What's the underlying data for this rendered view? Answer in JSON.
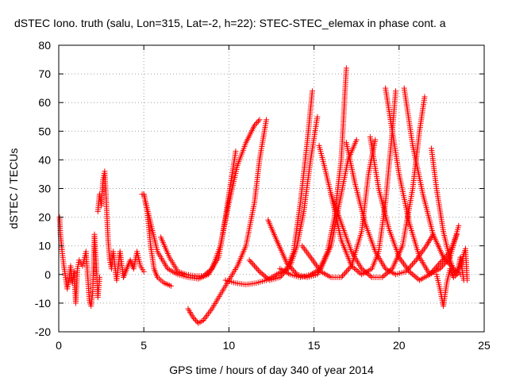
{
  "chart_data": {
    "type": "scatter",
    "title": "dSTEC Iono. truth (salu, Lon=315, Lat=-2, h=22): STEC-STEC_elemax in phase cont. a",
    "xlabel": "GPS time / hours of day 340 of year 2014",
    "ylabel": "dSTEC  / TECUs",
    "xlim": [
      0,
      25
    ],
    "ylim": [
      -20,
      80
    ],
    "xticks": [
      "0",
      "5",
      "10",
      "15",
      "20",
      "25"
    ],
    "yticks": [
      "-20",
      "-10",
      "0",
      "10",
      "20",
      "30",
      "40",
      "50",
      "60",
      "70",
      "80"
    ],
    "grid": true,
    "marker": "+",
    "color": "#ff0000",
    "series": [
      {
        "values": [
          [
            0.05,
            20
          ],
          [
            0.1,
            14
          ],
          [
            0.2,
            8
          ],
          [
            0.3,
            3
          ],
          [
            0.4,
            -1
          ],
          [
            0.5,
            -5
          ],
          [
            0.6,
            -2
          ],
          [
            0.7,
            3
          ],
          [
            0.8,
            -3
          ],
          [
            0.9,
            1
          ],
          [
            1.0,
            -10
          ],
          [
            1.1,
            2
          ],
          [
            1.2,
            5
          ],
          [
            1.4,
            3
          ],
          [
            1.6,
            8
          ],
          [
            1.8,
            -9
          ],
          [
            1.9,
            -11
          ],
          [
            2.0,
            -6
          ],
          [
            2.1,
            14
          ],
          [
            2.2,
            4
          ],
          [
            2.3,
            -8
          ],
          [
            2.4,
            -1
          ]
        ]
      },
      {
        "values": [
          [
            2.3,
            22
          ],
          [
            2.4,
            28
          ],
          [
            2.5,
            24
          ],
          [
            2.6,
            33
          ],
          [
            2.7,
            36
          ],
          [
            2.8,
            25
          ],
          [
            2.9,
            12
          ],
          [
            3.0,
            5
          ],
          [
            3.1,
            2
          ],
          [
            3.2,
            8
          ],
          [
            3.4,
            -2
          ],
          [
            3.6,
            8
          ],
          [
            3.8,
            -1
          ],
          [
            4.0,
            2
          ],
          [
            4.2,
            5
          ],
          [
            4.4,
            2
          ],
          [
            4.6,
            8
          ],
          [
            4.8,
            3
          ],
          [
            5.0,
            1
          ]
        ]
      },
      {
        "values": [
          [
            4.9,
            28
          ],
          [
            5.0,
            28
          ],
          [
            5.2,
            22
          ],
          [
            5.4,
            10
          ],
          [
            5.6,
            2
          ],
          [
            5.8,
            -1
          ],
          [
            6.0,
            -2
          ],
          [
            6.2,
            -3
          ],
          [
            6.4,
            -3.5
          ],
          [
            6.6,
            -4
          ]
        ]
      },
      {
        "values": [
          [
            5.0,
            28
          ],
          [
            5.4,
            18
          ],
          [
            5.8,
            8
          ],
          [
            6.4,
            2
          ],
          [
            7.0,
            0
          ],
          [
            7.6,
            -1
          ],
          [
            8.2,
            -1.5
          ],
          [
            8.8,
            0
          ],
          [
            9.4,
            6
          ],
          [
            9.8,
            20
          ],
          [
            10.0,
            28
          ],
          [
            10.4,
            43
          ]
        ]
      },
      {
        "values": [
          [
            6.0,
            13
          ],
          [
            6.5,
            6
          ],
          [
            7.0,
            1
          ],
          [
            7.5,
            0
          ],
          [
            8.0,
            -0.5
          ],
          [
            8.5,
            -0.5
          ],
          [
            9.0,
            2
          ],
          [
            9.5,
            10
          ],
          [
            10.0,
            25
          ],
          [
            10.5,
            38
          ],
          [
            11.0,
            46
          ],
          [
            11.5,
            52
          ],
          [
            11.8,
            54
          ]
        ]
      },
      {
        "values": [
          [
            7.6,
            -12
          ],
          [
            7.9,
            -15
          ],
          [
            8.2,
            -17
          ],
          [
            8.5,
            -16
          ],
          [
            9.0,
            -12
          ],
          [
            9.5,
            -7
          ],
          [
            10.0,
            -2
          ],
          [
            10.5,
            3
          ],
          [
            11.0,
            10
          ],
          [
            11.5,
            25
          ],
          [
            11.8,
            40
          ],
          [
            12.2,
            54
          ]
        ]
      },
      {
        "values": [
          [
            9.8,
            -2
          ],
          [
            10.4,
            -3
          ],
          [
            11.0,
            -3.5
          ],
          [
            11.6,
            -3
          ],
          [
            12.2,
            -2
          ],
          [
            12.8,
            0
          ],
          [
            13.4,
            2
          ],
          [
            13.8,
            8
          ],
          [
            14.2,
            25
          ],
          [
            14.6,
            46
          ],
          [
            14.9,
            64
          ]
        ]
      },
      {
        "values": [
          [
            11.2,
            5
          ],
          [
            11.8,
            1
          ],
          [
            12.4,
            -2
          ],
          [
            13.0,
            -1
          ],
          [
            13.6,
            3
          ],
          [
            14.0,
            10
          ],
          [
            14.4,
            22
          ],
          [
            14.8,
            40
          ],
          [
            15.2,
            55
          ]
        ]
      },
      {
        "values": [
          [
            12.3,
            19
          ],
          [
            12.8,
            12
          ],
          [
            13.4,
            4
          ],
          [
            14.0,
            0
          ],
          [
            14.6,
            -1
          ],
          [
            15.2,
            0
          ],
          [
            15.8,
            8
          ],
          [
            16.2,
            20
          ],
          [
            16.6,
            40
          ],
          [
            16.9,
            72
          ]
        ]
      },
      {
        "values": [
          [
            13.0,
            2
          ],
          [
            13.6,
            0
          ],
          [
            14.2,
            -1
          ],
          [
            14.8,
            0
          ],
          [
            15.4,
            2
          ],
          [
            16.0,
            10
          ],
          [
            16.5,
            25
          ],
          [
            17.0,
            40
          ],
          [
            17.5,
            47
          ]
        ]
      },
      {
        "values": [
          [
            14.3,
            10
          ],
          [
            14.8,
            6
          ],
          [
            15.4,
            1
          ],
          [
            16.0,
            -1
          ],
          [
            16.6,
            -1
          ],
          [
            17.2,
            3
          ],
          [
            17.8,
            15
          ],
          [
            18.2,
            35
          ],
          [
            18.6,
            47
          ]
        ]
      },
      {
        "values": [
          [
            15.3,
            45
          ],
          [
            15.6,
            38
          ],
          [
            16.0,
            28
          ],
          [
            16.6,
            12
          ],
          [
            17.2,
            3
          ],
          [
            17.8,
            0
          ],
          [
            18.4,
            2
          ],
          [
            18.8,
            8
          ],
          [
            19.2,
            25
          ],
          [
            19.6,
            50
          ],
          [
            19.8,
            64
          ]
        ]
      },
      {
        "values": [
          [
            16.0,
            28
          ],
          [
            16.6,
            18
          ],
          [
            17.2,
            8
          ],
          [
            17.8,
            2
          ],
          [
            18.4,
            -1
          ],
          [
            19.0,
            -1
          ],
          [
            19.6,
            2
          ],
          [
            20.2,
            10
          ],
          [
            20.8,
            30
          ],
          [
            21.2,
            50
          ],
          [
            21.5,
            62
          ]
        ]
      },
      {
        "values": [
          [
            16.9,
            46
          ],
          [
            17.4,
            32
          ],
          [
            18.0,
            18
          ],
          [
            18.6,
            8
          ],
          [
            19.2,
            2
          ],
          [
            19.8,
            0
          ],
          [
            20.4,
            1
          ],
          [
            21.0,
            5
          ],
          [
            21.6,
            10
          ],
          [
            22.0,
            14
          ]
        ]
      },
      {
        "values": [
          [
            18.3,
            48
          ],
          [
            18.8,
            30
          ],
          [
            19.4,
            16
          ],
          [
            20.0,
            6
          ],
          [
            20.6,
            1
          ],
          [
            21.2,
            -2
          ],
          [
            21.8,
            0
          ],
          [
            22.4,
            4
          ],
          [
            23.0,
            8
          ],
          [
            23.4,
            14
          ]
        ]
      },
      {
        "values": [
          [
            19.2,
            65
          ],
          [
            19.6,
            50
          ],
          [
            20.0,
            35
          ],
          [
            20.6,
            18
          ],
          [
            21.2,
            6
          ],
          [
            21.8,
            0
          ],
          [
            22.4,
            2
          ],
          [
            23.0,
            6
          ],
          [
            23.5,
            17
          ]
        ]
      },
      {
        "values": [
          [
            20.3,
            65
          ],
          [
            20.8,
            45
          ],
          [
            21.4,
            28
          ],
          [
            22.0,
            14
          ],
          [
            22.6,
            6
          ],
          [
            23.2,
            2
          ],
          [
            23.6,
            0
          ]
        ]
      },
      {
        "values": [
          [
            21.9,
            44
          ],
          [
            22.2,
            30
          ],
          [
            22.6,
            15
          ],
          [
            23.0,
            5
          ],
          [
            23.3,
            0
          ],
          [
            23.6,
            3
          ],
          [
            23.9,
            9
          ],
          [
            24.0,
            -2
          ]
        ]
      },
      {
        "values": [
          [
            22.2,
            0
          ],
          [
            22.4,
            -5
          ],
          [
            22.6,
            -11
          ],
          [
            22.8,
            -3
          ],
          [
            23.0,
            2
          ],
          [
            23.2,
            -1
          ],
          [
            23.4,
            0
          ],
          [
            23.6,
            6
          ],
          [
            23.8,
            -2
          ]
        ]
      }
    ]
  }
}
